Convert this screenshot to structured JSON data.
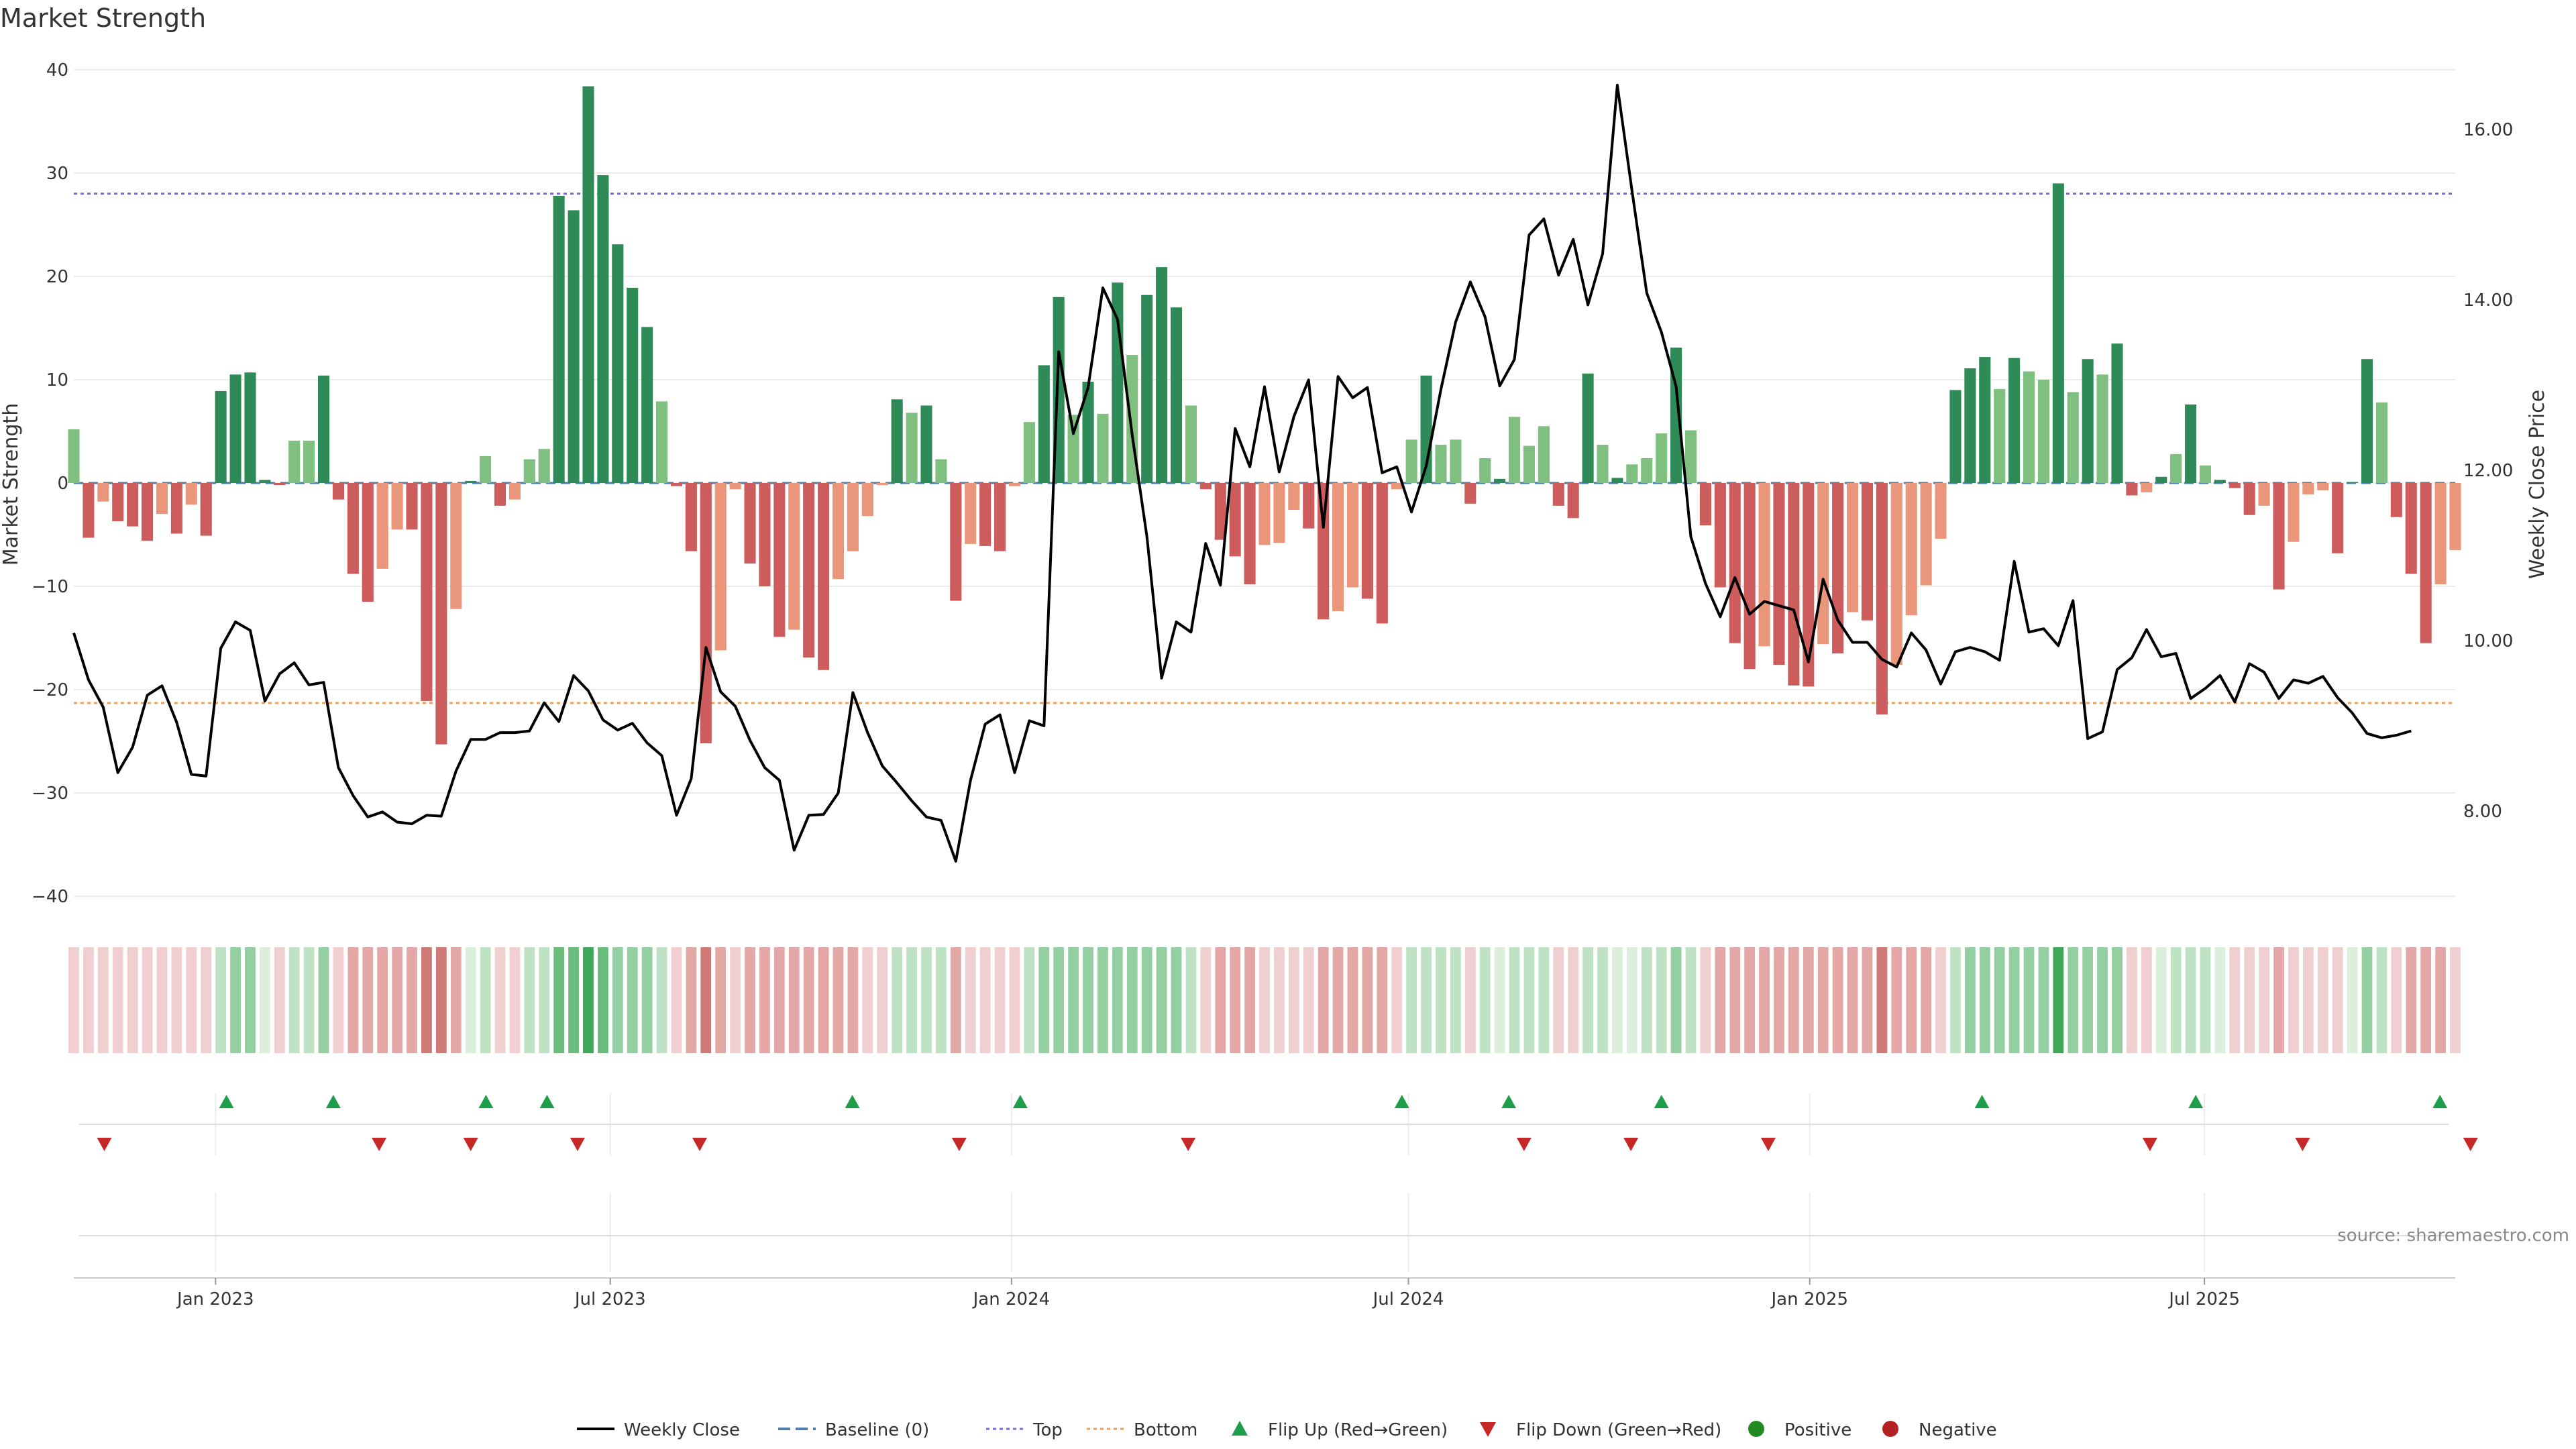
{
  "chart_data": {
    "type": "bar",
    "title": "Market Strength",
    "ylabel_left": "Market Strength",
    "ylabel_right": "Weekly Close Price",
    "ylim_left": [
      -40,
      40
    ],
    "yticks_left": [
      40,
      30,
      20,
      10,
      0,
      -10,
      -20,
      -30,
      -40
    ],
    "ylim_right": [
      7.0,
      16.7
    ],
    "yticks_right": [
      16.0,
      14.0,
      12.0,
      10.0,
      8.0
    ],
    "yticks_right_labels": [
      "16.00",
      "14.00",
      "12.00",
      "10.00",
      "8.00"
    ],
    "x_start": "2022-10-28",
    "x_end": "2025-10-24",
    "x_ticks": [
      {
        "date": "2023-01-01",
        "label": "Jan 2023"
      },
      {
        "date": "2023-07-01",
        "label": "Jul 2023"
      },
      {
        "date": "2024-01-01",
        "label": "Jan 2024"
      },
      {
        "date": "2024-07-01",
        "label": "Jul 2024"
      },
      {
        "date": "2025-01-01",
        "label": "Jan 2025"
      },
      {
        "date": "2025-07-01",
        "label": "Jul 2025"
      }
    ],
    "top_level": 28,
    "bottom_level": -21.3,
    "grid": true,
    "legend_placement": "bottom",
    "colors": {
      "pos_strong": "#2e8b57",
      "pos_weak": "#7fbf7f",
      "neg_strong": "#cd5c5c",
      "neg_weak": "#e9967a",
      "top_line": "#7b68c8",
      "bottom_line": "#e8a060",
      "baseline": "#4a7fb0",
      "price_line": "#000000",
      "flip_up": "#1e9e4a",
      "flip_down": "#c62828"
    },
    "series": [
      {
        "name": "Market Strength",
        "values": [
          5.2,
          -5.3,
          -1.8,
          -3.7,
          -4.2,
          -5.6,
          -3.0,
          -4.9,
          -2.1,
          -5.1,
          8.9,
          10.5,
          10.7,
          0.3,
          -0.2,
          4.1,
          4.1,
          10.4,
          -1.6,
          -8.8,
          -11.5,
          -8.3,
          -4.5,
          -4.5,
          -21.1,
          -25.3,
          -12.2,
          0.2,
          2.6,
          -2.2,
          -1.6,
          2.3,
          3.3,
          27.8,
          26.4,
          38.4,
          29.8,
          23.1,
          18.9,
          15.1,
          7.9,
          -0.3,
          -6.6,
          -25.2,
          -16.2,
          -0.6,
          -7.8,
          -10.0,
          -14.9,
          -14.2,
          -16.9,
          -18.1,
          -9.3,
          -6.6,
          -3.2,
          -0.2,
          8.1,
          6.8,
          7.5,
          2.3,
          -11.4,
          -5.9,
          -6.1,
          -6.6,
          -0.3,
          5.9,
          11.4,
          18.0,
          6.6,
          9.8,
          6.7,
          19.4,
          12.4,
          18.2,
          20.9,
          17.0,
          7.5,
          -0.6,
          -5.5,
          -7.1,
          -9.8,
          -6.0,
          -5.8,
          -2.6,
          -4.4,
          -13.2,
          -12.4,
          -10.1,
          -11.2,
          -13.6,
          -0.6,
          4.2,
          10.4,
          3.7,
          4.2,
          -2.0,
          2.4,
          0.4,
          6.4,
          3.6,
          5.5,
          -2.2,
          -3.4,
          10.6,
          3.7,
          0.5,
          1.8,
          2.4,
          4.8,
          13.1,
          5.1,
          -4.1,
          -10.1,
          -15.5,
          -18.0,
          -15.8,
          -17.6,
          -19.6,
          -19.7,
          -15.6,
          -16.5,
          -12.5,
          -13.3,
          -22.4,
          -17.6,
          -12.8,
          -9.9,
          -5.4,
          9.0,
          11.1,
          12.2,
          9.1,
          12.1,
          10.8,
          10.0,
          29.0,
          8.8,
          12.0,
          10.5,
          13.5,
          -1.2,
          -0.9,
          0.6,
          2.8,
          7.6,
          1.7,
          0.3,
          -0.5,
          -3.1,
          -2.2,
          -10.3,
          -5.7,
          -1.1,
          -0.7,
          -6.8,
          0.1,
          12.0,
          7.8,
          -3.3,
          -8.8,
          -15.5,
          -9.8,
          -6.5
        ]
      },
      {
        "name": "Weekly Close",
        "values": [
          10.09,
          9.54,
          9.22,
          8.45,
          8.75,
          9.36,
          9.47,
          9.04,
          8.43,
          8.41,
          9.91,
          10.22,
          10.12,
          9.29,
          9.61,
          9.74,
          9.48,
          9.51,
          8.51,
          8.18,
          7.93,
          7.99,
          7.87,
          7.85,
          7.95,
          7.94,
          8.47,
          8.84,
          8.84,
          8.92,
          8.92,
          8.94,
          9.27,
          9.05,
          9.59,
          9.41,
          9.07,
          8.95,
          9.03,
          8.8,
          8.65,
          7.95,
          8.38,
          9.92,
          9.4,
          9.23,
          8.83,
          8.51,
          8.36,
          7.54,
          7.95,
          7.96,
          8.21,
          9.39,
          8.92,
          8.53,
          8.33,
          8.12,
          7.93,
          7.89,
          7.41,
          8.36,
          9.02,
          9.13,
          8.45,
          9.06,
          9.0,
          13.39,
          12.43,
          12.97,
          14.14,
          13.77,
          12.41,
          11.22,
          9.56,
          10.22,
          10.1,
          11.14,
          10.65,
          12.49,
          12.04,
          12.98,
          11.98,
          12.63,
          13.06,
          11.33,
          13.1,
          12.85,
          12.97,
          11.97,
          12.04,
          11.51,
          12.05,
          12.95,
          13.74,
          14.21,
          13.8,
          12.99,
          13.3,
          14.76,
          14.95,
          14.29,
          14.71,
          13.94,
          14.54,
          16.52,
          15.28,
          14.08,
          13.62,
          12.98,
          11.22,
          10.67,
          10.28,
          10.74,
          10.31,
          10.46,
          10.41,
          10.36,
          9.75,
          10.72,
          10.24,
          9.98,
          9.98,
          9.78,
          9.69,
          10.09,
          9.89,
          9.49,
          9.87,
          9.92,
          9.87,
          9.77,
          10.93,
          10.1,
          10.14,
          9.94,
          10.47,
          8.85,
          8.93,
          9.66,
          9.8,
          10.13,
          9.81,
          9.85,
          9.32,
          9.44,
          9.59,
          9.28,
          9.73,
          9.63,
          9.32,
          9.54,
          9.5,
          9.58,
          9.33,
          9.15,
          8.91,
          8.86,
          8.89,
          8.94
        ]
      }
    ],
    "regime_strip": {
      "description_free": true,
      "shades": [
        "n1",
        "n1",
        "n1",
        "n1",
        "n1",
        "n1",
        "n1",
        "n1",
        "n1",
        "n1",
        "p1",
        "p2",
        "p2",
        "p0",
        "n1",
        "p1",
        "p1",
        "p2",
        "n1",
        "n2",
        "n2",
        "n2",
        "n2",
        "n2",
        "n3",
        "n3",
        "n2",
        "p0",
        "p1",
        "n1",
        "n1",
        "p1",
        "p1",
        "p3",
        "p3",
        "p4",
        "p3",
        "p2",
        "p2",
        "p2",
        "p1",
        "n1",
        "n2",
        "n3",
        "n2",
        "n1",
        "n2",
        "n2",
        "n2",
        "n2",
        "n2",
        "n2",
        "n2",
        "n2",
        "n1",
        "n1",
        "p1",
        "p1",
        "p1",
        "p1",
        "n2",
        "n1",
        "n1",
        "n1",
        "n1",
        "p1",
        "p2",
        "p2",
        "p2",
        "p2",
        "p2",
        "p2",
        "p2",
        "p2",
        "p2",
        "p2",
        "p1",
        "n1",
        "n2",
        "n2",
        "n2",
        "n1",
        "n1",
        "n1",
        "n1",
        "n2",
        "n2",
        "n2",
        "n2",
        "n2",
        "n1",
        "p1",
        "p1",
        "p1",
        "p1",
        "n1",
        "p1",
        "p0",
        "p1",
        "p1",
        "p1",
        "n1",
        "n1",
        "p1",
        "p1",
        "p0",
        "p0",
        "p1",
        "p1",
        "p2",
        "p1",
        "n1",
        "n2",
        "n2",
        "n2",
        "n2",
        "n2",
        "n2",
        "n2",
        "n2",
        "n2",
        "n2",
        "n2",
        "n3",
        "n2",
        "n2",
        "n2",
        "n1",
        "p1",
        "p2",
        "p2",
        "p2",
        "p2",
        "p2",
        "p2",
        "p4",
        "p2",
        "p2",
        "p2",
        "p2",
        "n1",
        "n1",
        "p0",
        "p1",
        "p1",
        "p1",
        "p0",
        "n1",
        "n1",
        "n1",
        "n2",
        "n1",
        "n1",
        "n1",
        "n1",
        "p0",
        "p2",
        "p1",
        "n1",
        "n2",
        "n2",
        "n2",
        "n1"
      ]
    },
    "flip_up_dates": [
      "2023-01-06",
      "2023-02-24",
      "2023-05-05",
      "2023-06-02",
      "2023-10-20",
      "2024-01-05",
      "2024-06-28",
      "2024-08-16",
      "2024-10-25",
      "2025-03-21",
      "2025-06-27",
      "2025-10-17"
    ],
    "flip_down_dates": [
      "2022-11-11",
      "2023-03-17",
      "2023-04-28",
      "2023-06-16",
      "2023-08-11",
      "2023-12-08",
      "2024-03-22",
      "2024-08-23",
      "2024-10-11",
      "2024-12-13",
      "2025-06-06",
      "2025-08-15",
      "2025-10-31"
    ],
    "legend": [
      {
        "key": "close",
        "label": "Weekly Close"
      },
      {
        "key": "baseline",
        "label": "Baseline (0)"
      },
      {
        "key": "top",
        "label": "Top"
      },
      {
        "key": "bottom",
        "label": "Bottom"
      },
      {
        "key": "flip_up",
        "label": "Flip Up (Red→Green)"
      },
      {
        "key": "flip_down",
        "label": "Flip Down (Green→Red)"
      },
      {
        "key": "positive",
        "label": "Positive"
      },
      {
        "key": "negative",
        "label": "Negative"
      }
    ]
  },
  "source": "source: sharemaestro.com"
}
